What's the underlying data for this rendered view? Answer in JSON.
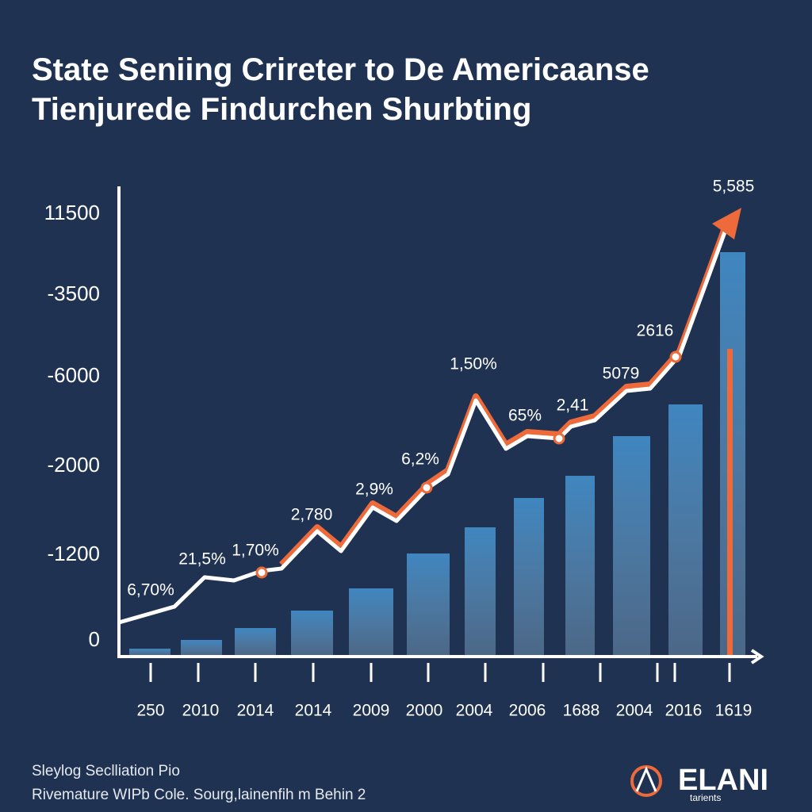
{
  "title": [
    "State Seniing Crireter to De Americaanse",
    "Tienjurede Findurchen Shurbting"
  ],
  "y_axis_labels": [
    "11500",
    "-3500",
    "-6000",
    "-2000",
    "-1200",
    "0"
  ],
  "x_axis_labels": [
    "250",
    "2010",
    "2014",
    "2014",
    "2009",
    "2000",
    "2004",
    "2006",
    "1688",
    "2004",
    "2016",
    "1619"
  ],
  "point_labels": [
    "6,70%",
    "21,5%",
    "1,70%",
    "2,780",
    "2,9%",
    "6,2%",
    "1,50%",
    "65%",
    "2,41",
    "5079",
    "2616",
    "5,585"
  ],
  "footer": [
    "Sleylog Seclliation Pio",
    "Rivemature WIPb Cole. Sourg,lainenfih m Behin 2"
  ],
  "logo": {
    "name": "ELANI",
    "tagline": "tarients"
  }
}
